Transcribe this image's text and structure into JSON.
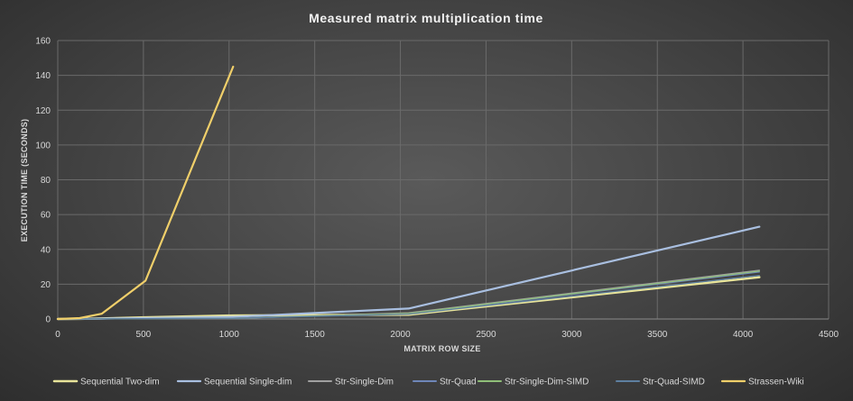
{
  "chart_data": {
    "type": "line",
    "title": "Measured matrix multiplication time",
    "xlabel": "MATRIX ROW SIZE",
    "ylabel": "EXECUTION TIME (SECONDS)",
    "xlim": [
      0,
      4500
    ],
    "ylim": [
      0,
      160
    ],
    "xticks": [
      0,
      500,
      1000,
      1500,
      2000,
      2500,
      3000,
      3500,
      4000,
      4500
    ],
    "yticks": [
      0,
      20,
      40,
      60,
      80,
      100,
      120,
      140,
      160
    ],
    "grid": true,
    "legend_position": "bottom",
    "series": [
      {
        "name": "Sequential Two-dim",
        "color": "#e8e49a",
        "width": 2.5,
        "points": [
          [
            0,
            0
          ],
          [
            128,
            0.05
          ],
          [
            256,
            0.3
          ],
          [
            512,
            1.0
          ],
          [
            1024,
            2.0
          ],
          [
            2048,
            2.5
          ],
          [
            4096,
            24
          ]
        ]
      },
      {
        "name": "Sequential Single-dim",
        "color": "#a9bfe0",
        "width": 2.2,
        "points": [
          [
            0,
            0
          ],
          [
            128,
            0.05
          ],
          [
            256,
            0.2
          ],
          [
            512,
            0.5
          ],
          [
            1024,
            1.2
          ],
          [
            2048,
            6
          ],
          [
            4096,
            53
          ]
        ]
      },
      {
        "name": "Str-Single-Dim",
        "color": "#a0a0a0",
        "width": 1.3,
        "points": [
          [
            0,
            0
          ],
          [
            128,
            0
          ],
          [
            256,
            0.1
          ],
          [
            512,
            0.2
          ],
          [
            1024,
            0.4
          ],
          [
            2048,
            3.5
          ],
          [
            4096,
            28
          ]
        ]
      },
      {
        "name": "Str-Quad",
        "color": "#6e86b8",
        "width": 1.3,
        "points": [
          [
            0,
            0
          ],
          [
            128,
            0
          ],
          [
            256,
            0.1
          ],
          [
            512,
            0.2
          ],
          [
            1024,
            0.4
          ],
          [
            2048,
            3.0
          ],
          [
            4096,
            27
          ]
        ]
      },
      {
        "name": "Str-Single-Dim-SIMD",
        "color": "#8fbf78",
        "width": 1.3,
        "points": [
          [
            0,
            0
          ],
          [
            128,
            0
          ],
          [
            256,
            0.1
          ],
          [
            512,
            0.2
          ],
          [
            1024,
            0.4
          ],
          [
            2048,
            3.2
          ],
          [
            4096,
            27.5
          ]
        ]
      },
      {
        "name": "Str-Quad-SIMD",
        "color": "#5e7fa0",
        "width": 1.3,
        "points": [
          [
            0,
            0
          ],
          [
            128,
            0
          ],
          [
            256,
            0.1
          ],
          [
            512,
            0.2
          ],
          [
            1024,
            0.4
          ],
          [
            2048,
            2.8
          ],
          [
            4096,
            25
          ]
        ]
      },
      {
        "name": "Strassen-Wiki",
        "color": "#f0cf6a",
        "width": 2.2,
        "points": [
          [
            0,
            0
          ],
          [
            128,
            0.5
          ],
          [
            256,
            3
          ],
          [
            512,
            22
          ],
          [
            1024,
            145
          ]
        ]
      }
    ]
  }
}
